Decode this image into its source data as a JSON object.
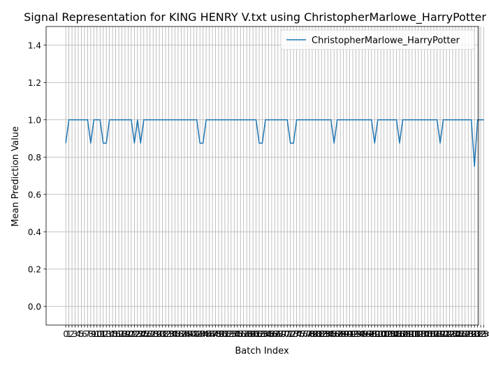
{
  "chart_data": {
    "type": "line",
    "title": "Signal Representation for KING HENRY V.txt using ChristopherMarlowe_HarryPotter",
    "xlabel": "Batch Index",
    "ylabel": "Mean Prediction Value",
    "xlim": [
      -6.3,
      132.3
    ],
    "ylim": [
      -0.1,
      1.5
    ],
    "yticks": [
      "0.0",
      "0.2",
      "0.4",
      "0.6",
      "0.8",
      "1.0",
      "1.2",
      "1.4"
    ],
    "grid": true,
    "legend_position": "top-right",
    "colors": {
      "line": "#1f77b4",
      "grid": "#b0b0b0",
      "axes": "#000000"
    },
    "series": [
      {
        "name": "ChristopherMarlowe_HarryPotter",
        "x_start": 0,
        "x_step": 1,
        "values": [
          0.875,
          1,
          1,
          1,
          1,
          1,
          1,
          1,
          0.875,
          1,
          1,
          1,
          0.875,
          0.875,
          1,
          1,
          1,
          1,
          1,
          1,
          1,
          1,
          0.875,
          1,
          0.875,
          1,
          1,
          1,
          1,
          1,
          1,
          1,
          1,
          1,
          1,
          1,
          1,
          1,
          1,
          1,
          1,
          1,
          1,
          0.875,
          0.875,
          1,
          1,
          1,
          1,
          1,
          1,
          1,
          1,
          1,
          1,
          1,
          1,
          1,
          1,
          1,
          1,
          1,
          0.875,
          0.875,
          1,
          1,
          1,
          1,
          1,
          1,
          1,
          1,
          0.875,
          0.875,
          1,
          1,
          1,
          1,
          1,
          1,
          1,
          1,
          1,
          1,
          1,
          1,
          0.875,
          1,
          1,
          1,
          1,
          1,
          1,
          1,
          1,
          1,
          1,
          1,
          1,
          0.875,
          1,
          1,
          1,
          1,
          1,
          1,
          1,
          0.875,
          1,
          1,
          1,
          1,
          1,
          1,
          1,
          1,
          1,
          1,
          1,
          1,
          0.875,
          1,
          1,
          1,
          1,
          1,
          1,
          1,
          1,
          1,
          1,
          0.75,
          1,
          1,
          1
        ]
      }
    ]
  }
}
